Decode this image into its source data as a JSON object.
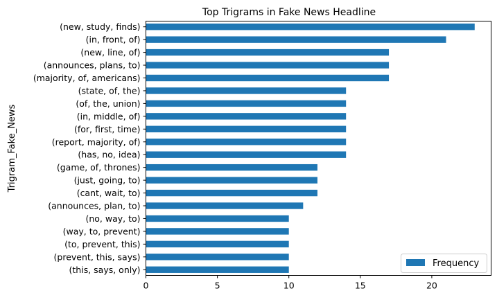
{
  "chart_data": {
    "type": "bar",
    "orientation": "horizontal",
    "title": "Top Trigrams in Fake News Headline",
    "xlabel": "",
    "ylabel": "Trigram_Fake_News",
    "xlim": [
      0,
      24.15
    ],
    "xticks": [
      0,
      5,
      10,
      15,
      20
    ],
    "grid": false,
    "legend_placement": "lower-right",
    "categories": [
      "(new, study, finds)",
      "(in, front, of)",
      "(new, line, of)",
      "(announces, plans, to)",
      "(majority, of, americans)",
      "(state, of, the)",
      "(of, the, union)",
      "(in, middle, of)",
      "(for, first, time)",
      "(report, majority, of)",
      "(has, no, idea)",
      "(game, of, thrones)",
      "(just, going, to)",
      "(cant, wait, to)",
      "(announces, plan, to)",
      "(no, way, to)",
      "(way, to, prevent)",
      "(to, prevent, this)",
      "(prevent, this, says)",
      "(this, says, only)"
    ],
    "series": [
      {
        "name": "Frequency",
        "color": "#1f77b4",
        "values": [
          23,
          21,
          17,
          17,
          17,
          14,
          14,
          14,
          14,
          14,
          14,
          12,
          12,
          12,
          11,
          10,
          10,
          10,
          10,
          10
        ]
      }
    ]
  }
}
